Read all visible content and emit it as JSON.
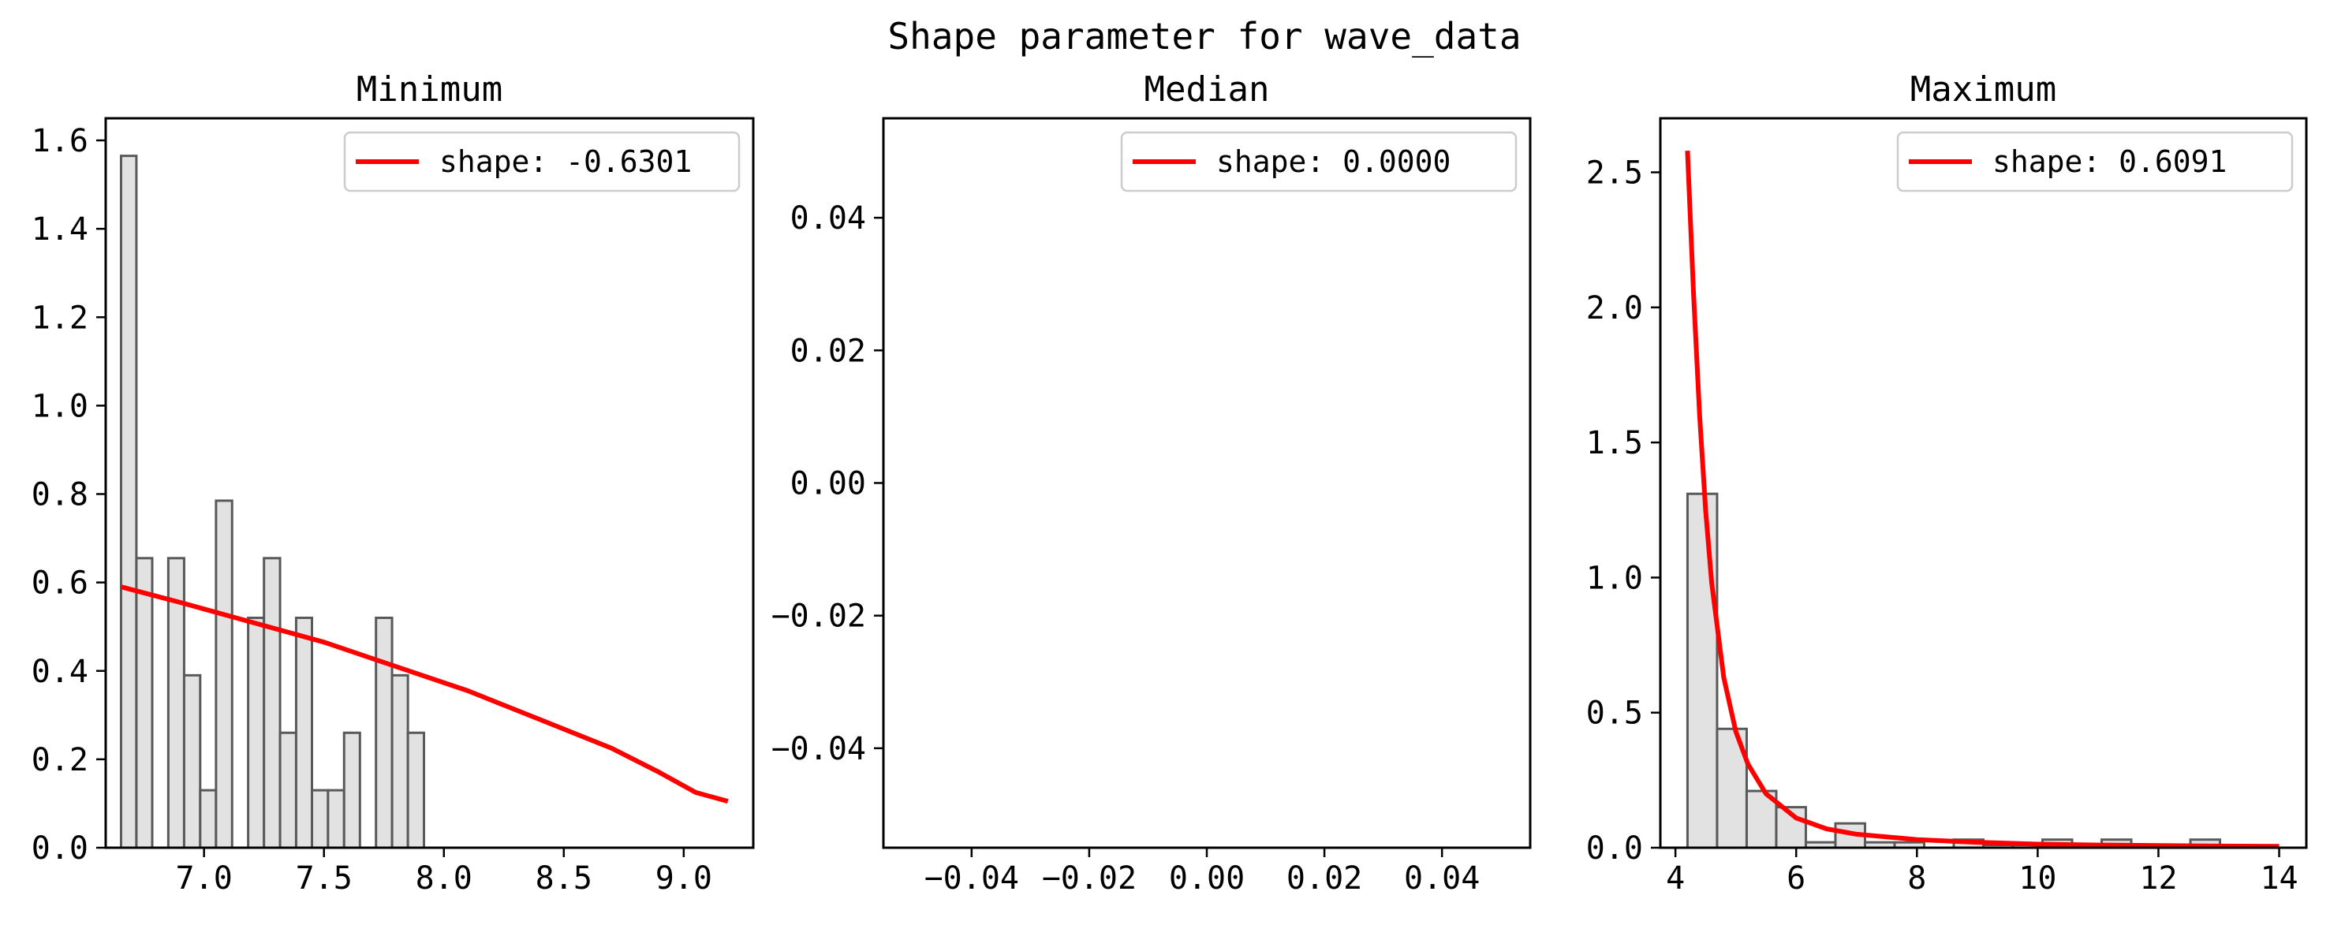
{
  "figure": {
    "suptitle": "Shape parameter for wave_data"
  },
  "colors": {
    "bar_fill": "#e2e2e2",
    "bar_edge": "#595959",
    "fit_line": "#ff0000",
    "axes": "#000000"
  },
  "chart_data": [
    {
      "type": "bar",
      "title": "Minimum",
      "xlabel": "",
      "ylabel": "",
      "xlim": [
        6.59,
        9.29
      ],
      "ylim": [
        0,
        1.65
      ],
      "xticks": [
        7.0,
        7.5,
        8.0,
        8.5,
        9.0
      ],
      "xtick_labels": [
        "7.0",
        "7.5",
        "8.0",
        "8.5",
        "9.0"
      ],
      "yticks": [
        0,
        0.2,
        0.4,
        0.6,
        0.8,
        1.0,
        1.2,
        1.4,
        1.6
      ],
      "ytick_labels": [
        "0.0",
        "0.2",
        "0.4",
        "0.6",
        "0.8",
        "1.0",
        "1.2",
        "1.4",
        "1.6"
      ],
      "bin_edges": [
        6.654,
        6.718,
        6.784,
        6.851,
        6.917,
        6.984,
        7.05,
        7.117,
        7.184,
        7.25,
        7.317,
        7.384,
        7.45,
        7.517,
        7.584,
        7.65,
        7.717,
        7.784,
        7.85,
        7.917,
        7.984,
        8.05,
        8.117,
        8.184,
        8.25,
        8.317,
        8.384,
        8.45,
        8.517,
        8.584,
        8.65,
        8.717,
        8.784,
        8.85,
        8.917,
        8.984,
        9.05,
        9.117,
        9.184,
        9.25
      ],
      "bin_edges_note": "",
      "bins": [
        {
          "x0": 6.654,
          "x1": 6.718,
          "v": 1.565
        },
        {
          "x0": 6.718,
          "x1": 6.784,
          "v": 0.655
        },
        {
          "x0": 6.851,
          "x1": 6.917,
          "v": 0.655
        },
        {
          "x0": 6.917,
          "x1": 6.984,
          "v": 0.39
        },
        {
          "x0": 6.984,
          "x1": 7.05,
          "v": 0.13
        },
        {
          "x0": 7.05,
          "x1": 7.117,
          "v": 0.785
        },
        {
          "x0": 7.184,
          "x1": 7.25,
          "v": 0.52
        },
        {
          "x0": 7.25,
          "x1": 7.317,
          "v": 0.655
        },
        {
          "x0": 7.317,
          "x1": 7.384,
          "v": 0.26
        },
        {
          "x0": 7.384,
          "x1": 7.45,
          "v": 0.52
        },
        {
          "x0": 7.45,
          "x1": 7.517,
          "v": 0.13
        },
        {
          "x0": 7.517,
          "x1": 7.584,
          "v": 0.13
        },
        {
          "x0": 7.584,
          "x1": 7.65,
          "v": 0.26
        },
        {
          "x0": 7.717,
          "x1": 7.784,
          "v": 0.52
        },
        {
          "x0": 7.784,
          "x1": 7.85,
          "v": 0.39
        },
        {
          "x0": 7.85,
          "x1": 7.917,
          "v": 0.26
        }
      ],
      "fit": {
        "label": "shape: -0.6301",
        "x": [
          6.654,
          6.9,
          7.2,
          7.5,
          7.8,
          8.1,
          8.4,
          8.7,
          8.9,
          9.05,
          9.184
        ],
        "y": [
          0.59,
          0.555,
          0.51,
          0.465,
          0.41,
          0.355,
          0.29,
          0.225,
          0.17,
          0.125,
          0.105
        ]
      },
      "legend_loc": "upper right"
    },
    {
      "type": "bar",
      "title": "Median",
      "xlabel": "",
      "ylabel": "",
      "xlim": [
        -0.055,
        0.055
      ],
      "ylim": [
        -0.055,
        0.055
      ],
      "xticks": [
        -0.04,
        -0.02,
        0.0,
        0.02,
        0.04
      ],
      "xtick_labels": [
        "−0.04",
        "−0.02",
        "0.00",
        "0.02",
        "0.04"
      ],
      "yticks": [
        -0.04,
        -0.02,
        0.0,
        0.02,
        0.04
      ],
      "ytick_labels": [
        "−0.04",
        "−0.02",
        "0.00",
        "0.02",
        "0.04"
      ],
      "bins": [],
      "fit": {
        "label": "shape: 0.0000",
        "x": [],
        "y": []
      },
      "legend_loc": "upper right"
    },
    {
      "type": "bar",
      "title": "Maximum",
      "xlabel": "",
      "ylabel": "",
      "xlim": [
        3.75,
        14.45
      ],
      "ylim": [
        0,
        2.7
      ],
      "xticks": [
        4,
        6,
        8,
        10,
        12,
        14
      ],
      "xtick_labels": [
        "4",
        "6",
        "8",
        "10",
        "12",
        "14"
      ],
      "yticks": [
        0,
        0.5,
        1.0,
        1.5,
        2.0,
        2.5
      ],
      "ytick_labels": [
        "0.0",
        "0.5",
        "1.0",
        "1.5",
        "2.0",
        "2.5"
      ],
      "bins": [
        {
          "x0": 4.2,
          "x1": 4.69,
          "v": 1.31
        },
        {
          "x0": 4.69,
          "x1": 5.18,
          "v": 0.44
        },
        {
          "x0": 5.18,
          "x1": 5.67,
          "v": 0.21
        },
        {
          "x0": 5.67,
          "x1": 6.16,
          "v": 0.15
        },
        {
          "x0": 6.16,
          "x1": 6.65,
          "v": 0.02
        },
        {
          "x0": 6.65,
          "x1": 7.14,
          "v": 0.09
        },
        {
          "x0": 7.14,
          "x1": 7.63,
          "v": 0.02
        },
        {
          "x0": 7.63,
          "x1": 8.12,
          "v": 0.02
        },
        {
          "x0": 8.61,
          "x1": 9.1,
          "v": 0.03
        },
        {
          "x0": 9.1,
          "x1": 9.59,
          "v": 0.01
        },
        {
          "x0": 9.59,
          "x1": 10.08,
          "v": 0.01
        },
        {
          "x0": 10.08,
          "x1": 10.57,
          "v": 0.03
        },
        {
          "x0": 10.57,
          "x1": 11.06,
          "v": 0.01
        },
        {
          "x0": 11.06,
          "x1": 11.55,
          "v": 0.03
        },
        {
          "x0": 12.53,
          "x1": 13.02,
          "v": 0.03
        }
      ],
      "fit": {
        "label": "shape: 0.6091",
        "x": [
          4.2,
          4.3,
          4.4,
          4.5,
          4.6,
          4.8,
          5.0,
          5.2,
          5.5,
          6.0,
          6.5,
          7.0,
          8.0,
          9.0,
          10.0,
          11.0,
          12.0,
          13.0,
          14.0
        ],
        "y": [
          2.58,
          2.05,
          1.6,
          1.25,
          0.98,
          0.63,
          0.43,
          0.31,
          0.2,
          0.11,
          0.07,
          0.05,
          0.03,
          0.02,
          0.013,
          0.01,
          0.008,
          0.006,
          0.005
        ]
      },
      "legend_loc": "upper right"
    }
  ]
}
